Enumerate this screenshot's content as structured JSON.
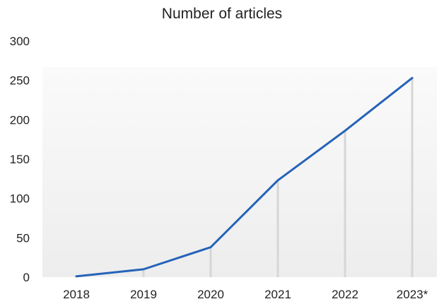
{
  "chart_data": {
    "type": "line",
    "title": "Number of articles",
    "xlabel": "",
    "ylabel": "",
    "categories": [
      "2018",
      "2019",
      "2020",
      "2021",
      "2022",
      "2023*"
    ],
    "series": [
      {
        "values": [
          1,
          10,
          38,
          123,
          186,
          253
        ]
      }
    ],
    "yticks": [
      0,
      50,
      100,
      150,
      200,
      250,
      300
    ],
    "ylim": [
      0,
      300
    ],
    "grid": false,
    "legend": "none",
    "drop_lines": true,
    "colors": {
      "line": "#2563b8",
      "drop_line": "#d6d6d6",
      "text": "#222222",
      "plot_band_light": "#fafafa",
      "plot_band_mid": "#f4f4f4",
      "plot_band_dark": "#ededed"
    }
  }
}
